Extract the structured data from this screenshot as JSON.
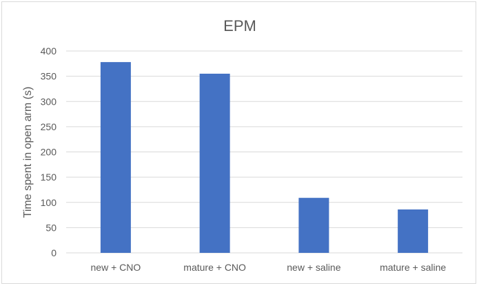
{
  "chart_data": {
    "type": "bar",
    "title": "EPM",
    "xlabel": "",
    "ylabel": "Time spent in open arm (s)",
    "categories": [
      "new + CNO",
      "mature + CNO",
      "new + saline",
      "mature + saline"
    ],
    "values": [
      378,
      355,
      109,
      86
    ],
    "ylim": [
      0,
      400
    ],
    "yticks": [
      0,
      50,
      100,
      150,
      200,
      250,
      300,
      350,
      400
    ],
    "ytick_labels": [
      "0",
      "50",
      "100",
      "150",
      "200",
      "250",
      "300",
      "350",
      "400"
    ],
    "grid": true,
    "legend": "none",
    "bar_color": "#4472c4",
    "grid_color": "#d9d9d9",
    "text_color": "#595959"
  }
}
